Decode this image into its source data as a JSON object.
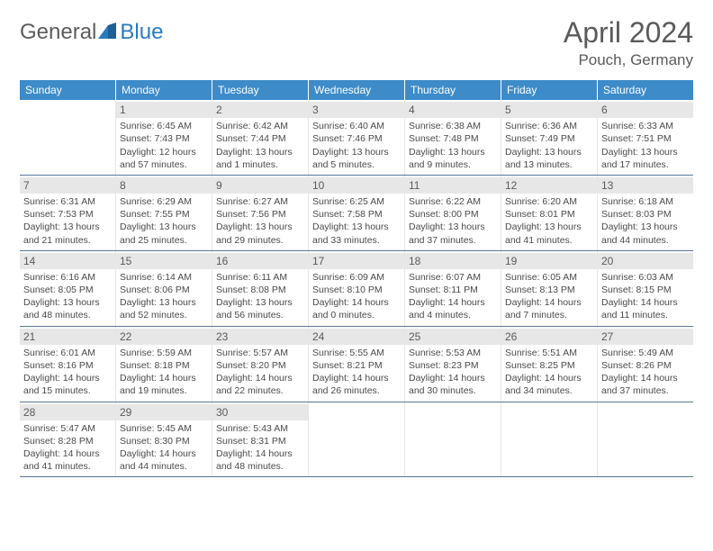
{
  "logo": {
    "word1": "General",
    "word2": "Blue"
  },
  "title": "April 2024",
  "location": "Pouch, Germany",
  "colors": {
    "header_bg": "#3d8bc9",
    "header_text": "#ffffff",
    "daynum_bg": "#e7e7e7",
    "text": "#4a4a4a",
    "week_divider": "#5a7696",
    "logo_accent": "#2a7ac0",
    "logo_text": "#5c5c5c"
  },
  "weekdays": [
    "Sunday",
    "Monday",
    "Tuesday",
    "Wednesday",
    "Thursday",
    "Friday",
    "Saturday"
  ],
  "weeks": [
    [
      null,
      {
        "n": "1",
        "sr": "6:45 AM",
        "ss": "7:43 PM",
        "dl": "12 hours and 57 minutes."
      },
      {
        "n": "2",
        "sr": "6:42 AM",
        "ss": "7:44 PM",
        "dl": "13 hours and 1 minutes."
      },
      {
        "n": "3",
        "sr": "6:40 AM",
        "ss": "7:46 PM",
        "dl": "13 hours and 5 minutes."
      },
      {
        "n": "4",
        "sr": "6:38 AM",
        "ss": "7:48 PM",
        "dl": "13 hours and 9 minutes."
      },
      {
        "n": "5",
        "sr": "6:36 AM",
        "ss": "7:49 PM",
        "dl": "13 hours and 13 minutes."
      },
      {
        "n": "6",
        "sr": "6:33 AM",
        "ss": "7:51 PM",
        "dl": "13 hours and 17 minutes."
      }
    ],
    [
      {
        "n": "7",
        "sr": "6:31 AM",
        "ss": "7:53 PM",
        "dl": "13 hours and 21 minutes."
      },
      {
        "n": "8",
        "sr": "6:29 AM",
        "ss": "7:55 PM",
        "dl": "13 hours and 25 minutes."
      },
      {
        "n": "9",
        "sr": "6:27 AM",
        "ss": "7:56 PM",
        "dl": "13 hours and 29 minutes."
      },
      {
        "n": "10",
        "sr": "6:25 AM",
        "ss": "7:58 PM",
        "dl": "13 hours and 33 minutes."
      },
      {
        "n": "11",
        "sr": "6:22 AM",
        "ss": "8:00 PM",
        "dl": "13 hours and 37 minutes."
      },
      {
        "n": "12",
        "sr": "6:20 AM",
        "ss": "8:01 PM",
        "dl": "13 hours and 41 minutes."
      },
      {
        "n": "13",
        "sr": "6:18 AM",
        "ss": "8:03 PM",
        "dl": "13 hours and 44 minutes."
      }
    ],
    [
      {
        "n": "14",
        "sr": "6:16 AM",
        "ss": "8:05 PM",
        "dl": "13 hours and 48 minutes."
      },
      {
        "n": "15",
        "sr": "6:14 AM",
        "ss": "8:06 PM",
        "dl": "13 hours and 52 minutes."
      },
      {
        "n": "16",
        "sr": "6:11 AM",
        "ss": "8:08 PM",
        "dl": "13 hours and 56 minutes."
      },
      {
        "n": "17",
        "sr": "6:09 AM",
        "ss": "8:10 PM",
        "dl": "14 hours and 0 minutes."
      },
      {
        "n": "18",
        "sr": "6:07 AM",
        "ss": "8:11 PM",
        "dl": "14 hours and 4 minutes."
      },
      {
        "n": "19",
        "sr": "6:05 AM",
        "ss": "8:13 PM",
        "dl": "14 hours and 7 minutes."
      },
      {
        "n": "20",
        "sr": "6:03 AM",
        "ss": "8:15 PM",
        "dl": "14 hours and 11 minutes."
      }
    ],
    [
      {
        "n": "21",
        "sr": "6:01 AM",
        "ss": "8:16 PM",
        "dl": "14 hours and 15 minutes."
      },
      {
        "n": "22",
        "sr": "5:59 AM",
        "ss": "8:18 PM",
        "dl": "14 hours and 19 minutes."
      },
      {
        "n": "23",
        "sr": "5:57 AM",
        "ss": "8:20 PM",
        "dl": "14 hours and 22 minutes."
      },
      {
        "n": "24",
        "sr": "5:55 AM",
        "ss": "8:21 PM",
        "dl": "14 hours and 26 minutes."
      },
      {
        "n": "25",
        "sr": "5:53 AM",
        "ss": "8:23 PM",
        "dl": "14 hours and 30 minutes."
      },
      {
        "n": "26",
        "sr": "5:51 AM",
        "ss": "8:25 PM",
        "dl": "14 hours and 34 minutes."
      },
      {
        "n": "27",
        "sr": "5:49 AM",
        "ss": "8:26 PM",
        "dl": "14 hours and 37 minutes."
      }
    ],
    [
      {
        "n": "28",
        "sr": "5:47 AM",
        "ss": "8:28 PM",
        "dl": "14 hours and 41 minutes."
      },
      {
        "n": "29",
        "sr": "5:45 AM",
        "ss": "8:30 PM",
        "dl": "14 hours and 44 minutes."
      },
      {
        "n": "30",
        "sr": "5:43 AM",
        "ss": "8:31 PM",
        "dl": "14 hours and 48 minutes."
      },
      null,
      null,
      null,
      null
    ]
  ],
  "labels": {
    "sunrise": "Sunrise: ",
    "sunset": "Sunset: ",
    "daylight": "Daylight: "
  }
}
